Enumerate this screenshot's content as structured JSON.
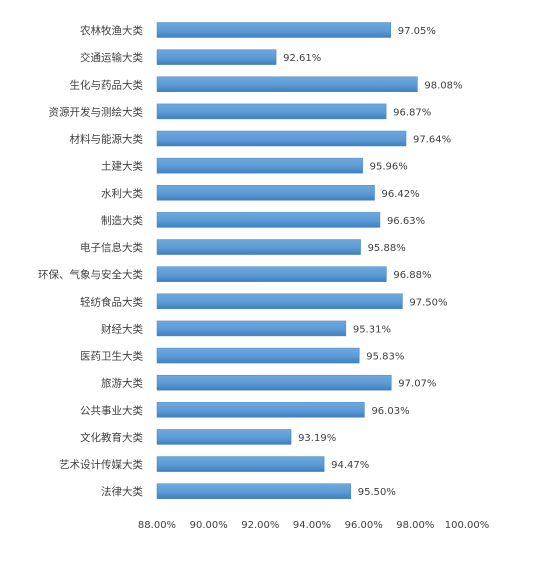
{
  "chart_data": {
    "type": "bar",
    "orientation": "horizontal",
    "title": "",
    "xlabel": "",
    "ylabel": "",
    "xlim": [
      88,
      100
    ],
    "ticks": [
      "88.00%",
      "90.00%",
      "92.00%",
      "94.00%",
      "96.00%",
      "98.00%",
      "100.00%"
    ],
    "tick_values": [
      88,
      90,
      92,
      94,
      96,
      98,
      100
    ],
    "grid": false,
    "legend": "none",
    "bar_color": "#5b9bd5",
    "bar_color_dark": "#3f7fc0",
    "categories": [
      "农林牧渔大类",
      "交通运输大类",
      "生化与药品大类",
      "资源开发与测绘大类",
      "材料与能源大类",
      "土建大类",
      "水利大类",
      "制造大类",
      "电子信息大类",
      "环保、气象与安全大类",
      "轻纺食品大类",
      "财经大类",
      "医药卫生大类",
      "旅游大类",
      "公共事业大类",
      "文化教育大类",
      "艺术设计传媒大类",
      "法律大类"
    ],
    "values": [
      97.05,
      92.61,
      98.08,
      96.87,
      97.64,
      95.96,
      96.42,
      96.63,
      95.88,
      96.88,
      97.5,
      95.31,
      95.83,
      97.07,
      96.03,
      93.19,
      94.47,
      95.5
    ],
    "value_labels": [
      "97.05%",
      "92.61%",
      "98.08%",
      "96.87%",
      "97.64%",
      "95.96%",
      "96.42%",
      "96.63%",
      "95.88%",
      "96.88%",
      "97.50%",
      "95.31%",
      "95.83%",
      "97.07%",
      "96.03%",
      "93.19%",
      "94.47%",
      "95.50%"
    ]
  }
}
